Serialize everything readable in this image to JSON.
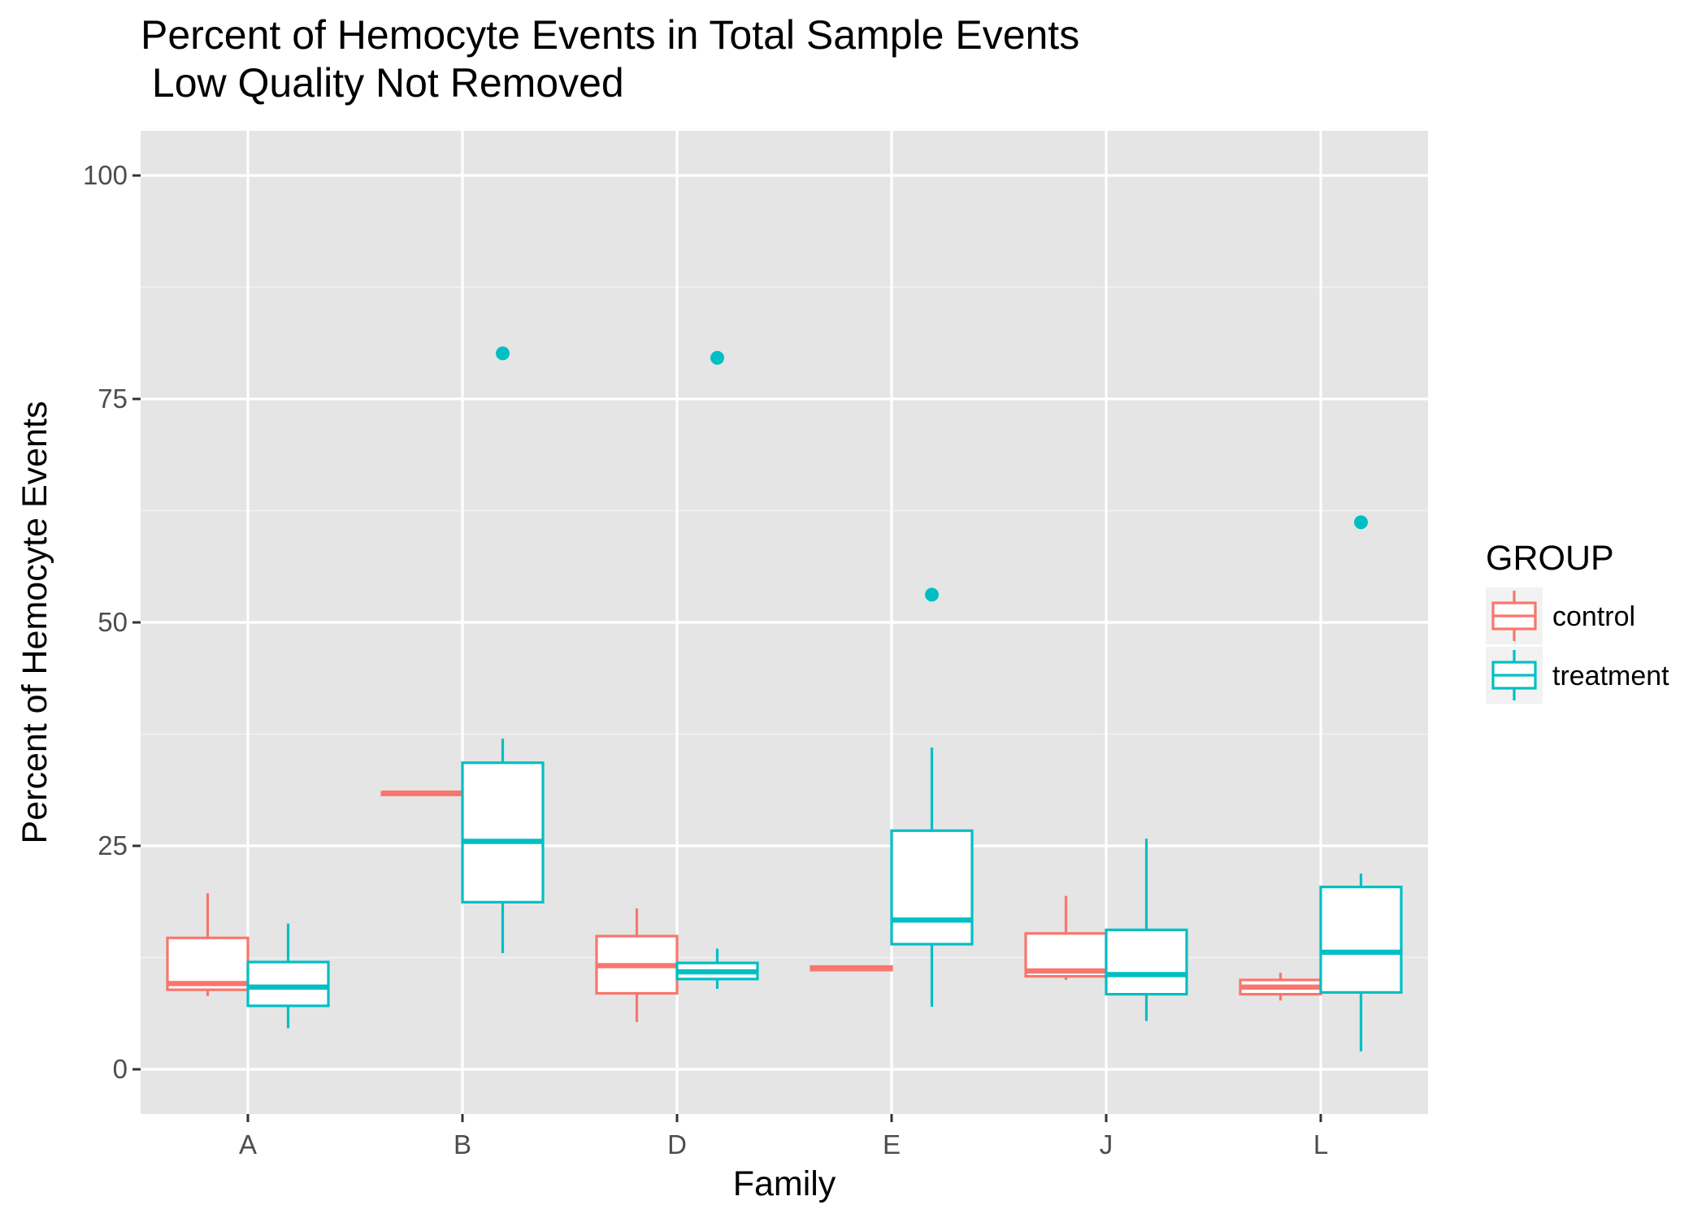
{
  "chart_data": {
    "type": "box",
    "title_line1": "Percent of Hemocyte Events in Total Sample Events",
    "title_line2": " Low Quality Not Removed",
    "xlabel": "Family",
    "ylabel": "Percent of Hemocyte Events",
    "ylim": [
      -5,
      105
    ],
    "yticks": [
      0,
      25,
      50,
      75,
      100
    ],
    "categories": [
      "A",
      "B",
      "D",
      "E",
      "J",
      "L"
    ],
    "grid": true,
    "legend": {
      "title": "GROUP",
      "position": "right",
      "items": [
        {
          "label": "control",
          "color": "#F8766D"
        },
        {
          "label": "treatment",
          "color": "#00BFC4"
        }
      ]
    },
    "series": [
      {
        "name": "control",
        "color": "#F8766D",
        "boxes": [
          {
            "category": "A",
            "lower_whisker": 8.2,
            "q1": 8.9,
            "median": 9.6,
            "q3": 14.7,
            "upper_whisker": 19.7,
            "outliers": []
          },
          {
            "category": "B",
            "lower_whisker": 30.7,
            "q1": 30.7,
            "median": 30.9,
            "q3": 31.0,
            "upper_whisker": 31.0,
            "outliers": []
          },
          {
            "category": "D",
            "lower_whisker": 5.3,
            "q1": 8.5,
            "median": 11.6,
            "q3": 14.9,
            "upper_whisker": 18.0,
            "outliers": []
          },
          {
            "category": "E",
            "lower_whisker": 11.1,
            "q1": 11.1,
            "median": 11.3,
            "q3": 11.5,
            "upper_whisker": 11.5,
            "outliers": []
          },
          {
            "category": "J",
            "lower_whisker": 10.0,
            "q1": 10.4,
            "median": 11.0,
            "q3": 15.2,
            "upper_whisker": 19.4,
            "outliers": []
          },
          {
            "category": "L",
            "lower_whisker": 7.7,
            "q1": 8.4,
            "median": 9.2,
            "q3": 10.0,
            "upper_whisker": 10.8,
            "outliers": []
          }
        ]
      },
      {
        "name": "treatment",
        "color": "#00BFC4",
        "boxes": [
          {
            "category": "A",
            "lower_whisker": 4.6,
            "q1": 7.1,
            "median": 9.2,
            "q3": 12.0,
            "upper_whisker": 16.3,
            "outliers": []
          },
          {
            "category": "B",
            "lower_whisker": 13.0,
            "q1": 18.7,
            "median": 25.5,
            "q3": 34.3,
            "upper_whisker": 37.0,
            "outliers": [
              80.1
            ]
          },
          {
            "category": "D",
            "lower_whisker": 9.0,
            "q1": 10.1,
            "median": 10.9,
            "q3": 11.9,
            "upper_whisker": 13.5,
            "outliers": [
              79.6
            ]
          },
          {
            "category": "E",
            "lower_whisker": 7.0,
            "q1": 14.0,
            "median": 16.7,
            "q3": 26.7,
            "upper_whisker": 36.0,
            "outliers": [
              53.1
            ]
          },
          {
            "category": "J",
            "lower_whisker": 5.4,
            "q1": 8.4,
            "median": 10.6,
            "q3": 15.6,
            "upper_whisker": 25.8,
            "outliers": []
          },
          {
            "category": "L",
            "lower_whisker": 2.0,
            "q1": 8.6,
            "median": 13.1,
            "q3": 20.4,
            "upper_whisker": 21.9,
            "outliers": [
              61.2
            ]
          }
        ]
      }
    ]
  }
}
